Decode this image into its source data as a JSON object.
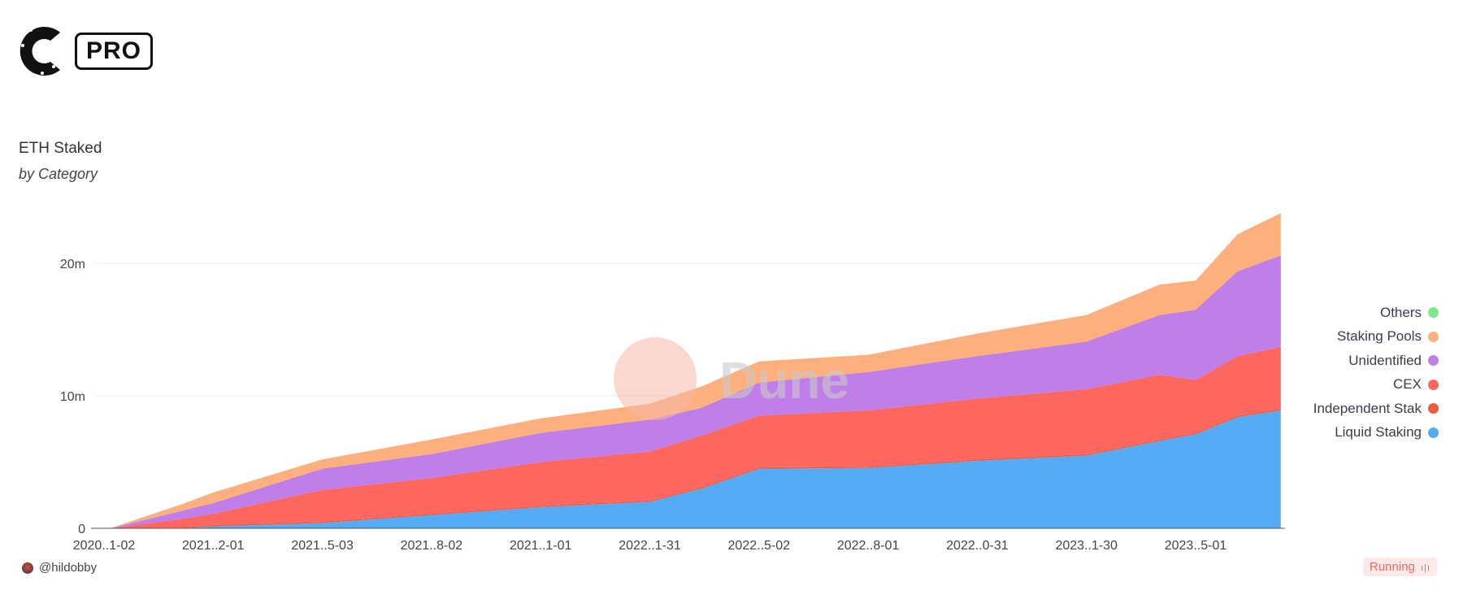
{
  "brand": {
    "logo_letter": "C",
    "badge": "PRO"
  },
  "chart_data": {
    "type": "area",
    "stacked": true,
    "title": "ETH Staked",
    "subtitle": "by Category",
    "xlabel": "",
    "ylabel": "",
    "ylim": [
      0,
      25000000
    ],
    "y_ticks": [
      {
        "value": 0,
        "label": "0"
      },
      {
        "value": 10000000,
        "label": "10m"
      },
      {
        "value": 20000000,
        "label": "20m"
      }
    ],
    "x_ticks": [
      {
        "date": "2020-11-02",
        "label": "2020..1-02"
      },
      {
        "date": "2021-02-01",
        "label": "2021..2-01"
      },
      {
        "date": "2021-05-03",
        "label": "2021..5-03"
      },
      {
        "date": "2021-08-02",
        "label": "2021..8-02"
      },
      {
        "date": "2021-11-01",
        "label": "2021..1-01"
      },
      {
        "date": "2022-01-31",
        "label": "2022..1-31"
      },
      {
        "date": "2022-05-02",
        "label": "2022..5-02"
      },
      {
        "date": "2022-08-01",
        "label": "2022..8-01"
      },
      {
        "date": "2022-10-31",
        "label": "2022..0-31"
      },
      {
        "date": "2023-01-30",
        "label": "2023..1-30"
      },
      {
        "date": "2023-05-01",
        "label": "2023..5-01"
      }
    ],
    "x_range": [
      "2020-11-02",
      "2023-07-11"
    ],
    "grid": true,
    "legend_position": "right",
    "x": [
      "2020-11-07",
      "2021-01-05",
      "2021-02-01",
      "2021-05-03",
      "2021-08-02",
      "2021-11-01",
      "2022-01-31",
      "2022-03-15",
      "2022-05-02",
      "2022-08-01",
      "2022-10-31",
      "2023-01-30",
      "2023-04-01",
      "2023-05-01",
      "2023-06-05",
      "2023-07-11"
    ],
    "series": [
      {
        "name": "Liquid Staking",
        "color": "#55acf5",
        "values": [
          0,
          0,
          0.15,
          0.4,
          1.0,
          1.6,
          2.0,
          3.0,
          4.5,
          4.55,
          5.1,
          5.5,
          6.6,
          7.1,
          8.4,
          8.9
        ]
      },
      {
        "name": "Independent Stak",
        "color": "#ec5a3f",
        "values": [
          0,
          0.05,
          0.1,
          0.1,
          0.1,
          0.1,
          0.1,
          0.1,
          0.1,
          0.1,
          0.1,
          0.1,
          0.1,
          0.1,
          0.1,
          0.1
        ]
      },
      {
        "name": "CEX",
        "color": "#fe6660",
        "values": [
          0,
          0.65,
          0.85,
          2.4,
          2.7,
          3.3,
          3.7,
          3.9,
          3.9,
          4.25,
          4.6,
          4.9,
          4.9,
          4.0,
          4.5,
          4.7
        ]
      },
      {
        "name": "Unidentified",
        "color": "#c07ee8",
        "values": [
          0,
          0.6,
          0.8,
          1.6,
          1.8,
          2.2,
          2.4,
          2.1,
          2.5,
          2.9,
          3.2,
          3.6,
          4.5,
          5.3,
          6.4,
          6.9
        ]
      },
      {
        "name": "Staking Pools",
        "color": "#fdb07e",
        "values": [
          0,
          0.5,
          0.8,
          0.7,
          1.1,
          1.1,
          1.2,
          1.6,
          1.6,
          1.3,
          1.7,
          2.0,
          2.3,
          2.2,
          2.8,
          3.2
        ]
      },
      {
        "name": "Others",
        "color": "#7ee787",
        "values": [
          0,
          0,
          0,
          0,
          0,
          0,
          0,
          0,
          0,
          0,
          0,
          0,
          0,
          0,
          0,
          0
        ]
      }
    ],
    "value_unit": "million ETH",
    "legend_order": [
      "Others",
      "Staking Pools",
      "Unidentified",
      "CEX",
      "Independent Stak",
      "Liquid Staking"
    ]
  },
  "watermark": "Dune",
  "footer": {
    "author": "@hildobby",
    "status": "Running",
    "status_icon": "bars-icon"
  }
}
